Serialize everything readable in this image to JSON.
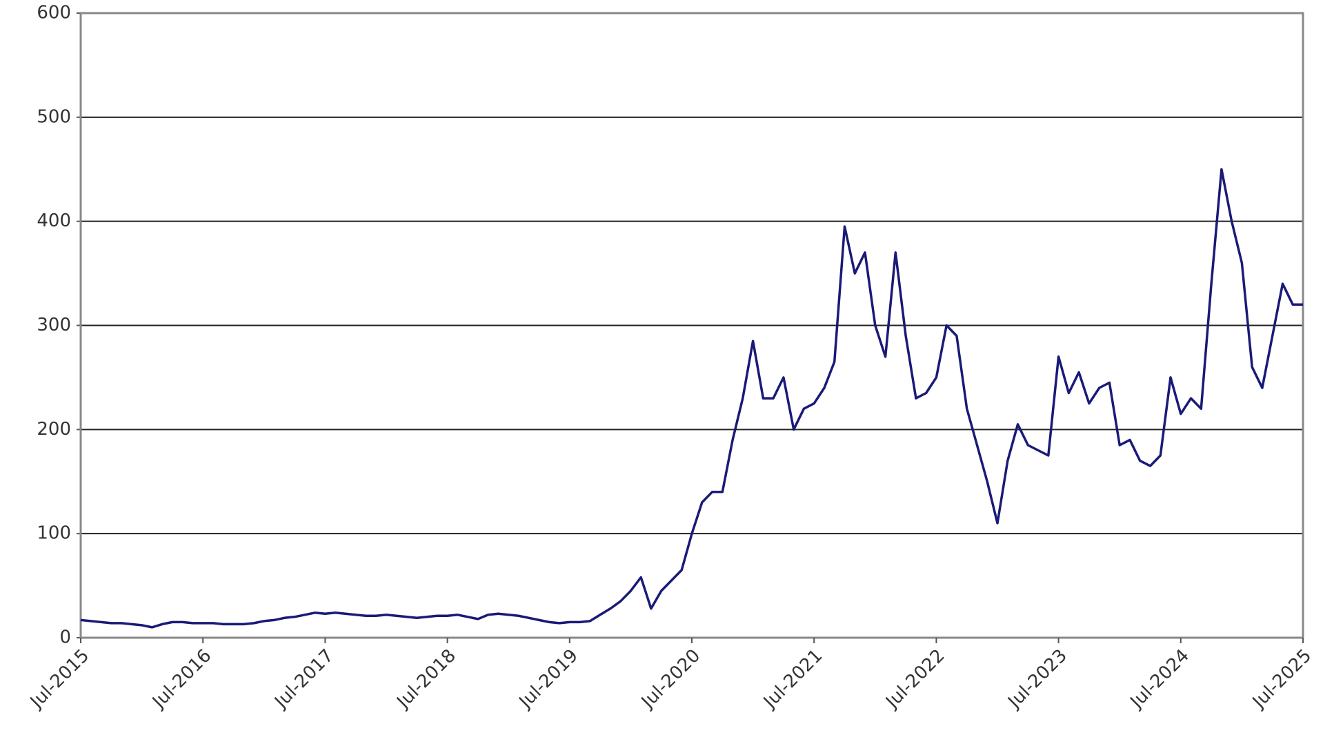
{
  "chart_data": {
    "type": "line",
    "x": [
      "2015-07",
      "2015-08",
      "2015-09",
      "2015-10",
      "2015-11",
      "2015-12",
      "2016-01",
      "2016-02",
      "2016-03",
      "2016-04",
      "2016-05",
      "2016-06",
      "2016-07",
      "2016-08",
      "2016-09",
      "2016-10",
      "2016-11",
      "2016-12",
      "2017-01",
      "2017-02",
      "2017-03",
      "2017-04",
      "2017-05",
      "2017-06",
      "2017-07",
      "2017-08",
      "2017-09",
      "2017-10",
      "2017-11",
      "2017-12",
      "2018-01",
      "2018-02",
      "2018-03",
      "2018-04",
      "2018-05",
      "2018-06",
      "2018-07",
      "2018-08",
      "2018-09",
      "2018-10",
      "2018-11",
      "2018-12",
      "2019-01",
      "2019-02",
      "2019-03",
      "2019-04",
      "2019-05",
      "2019-06",
      "2019-07",
      "2019-08",
      "2019-09",
      "2019-10",
      "2019-11",
      "2019-12",
      "2020-01",
      "2020-02",
      "2020-03",
      "2020-04",
      "2020-05",
      "2020-06",
      "2020-07",
      "2020-08",
      "2020-09",
      "2020-10",
      "2020-11",
      "2020-12",
      "2021-01",
      "2021-02",
      "2021-03",
      "2021-04",
      "2021-05",
      "2021-06",
      "2021-07",
      "2021-08",
      "2021-09",
      "2021-10",
      "2021-11",
      "2021-12",
      "2022-01",
      "2022-02",
      "2022-03",
      "2022-04",
      "2022-05",
      "2022-06",
      "2022-07",
      "2022-08",
      "2022-09",
      "2022-10",
      "2022-11",
      "2022-12",
      "2023-01",
      "2023-02",
      "2023-03",
      "2023-04",
      "2023-05",
      "2023-06",
      "2023-07",
      "2023-08",
      "2023-09",
      "2023-10",
      "2023-11",
      "2023-12",
      "2024-01",
      "2024-02",
      "2024-03",
      "2024-04",
      "2024-05",
      "2024-06",
      "2024-07",
      "2024-08",
      "2024-09",
      "2024-10",
      "2024-11",
      "2024-12",
      "2025-01",
      "2025-02",
      "2025-03",
      "2025-04",
      "2025-05",
      "2025-06",
      "2025-07"
    ],
    "series": [
      {
        "color": "#1a1a78",
        "values": [
          17,
          16,
          15,
          14,
          14,
          13,
          12,
          10,
          13,
          15,
          15,
          14,
          14,
          14,
          13,
          13,
          13,
          14,
          16,
          17,
          19,
          20,
          22,
          24,
          23,
          24,
          23,
          22,
          21,
          21,
          22,
          21,
          20,
          19,
          20,
          21,
          21,
          22,
          20,
          18,
          22,
          23,
          22,
          21,
          19,
          17,
          15,
          14,
          15,
          15,
          16,
          22,
          28,
          35,
          45,
          58,
          28,
          45,
          55,
          65,
          100,
          130,
          140,
          140,
          190,
          230,
          285,
          230,
          230,
          250,
          200,
          220,
          225,
          240,
          265,
          395,
          350,
          370,
          300,
          270,
          370,
          290,
          230,
          235,
          250,
          300,
          290,
          220,
          185,
          150,
          110,
          170,
          205,
          185,
          180,
          175,
          270,
          235,
          255,
          225,
          240,
          245,
          185,
          190,
          170,
          165,
          175,
          250,
          215,
          230,
          220,
          340,
          450,
          400,
          360,
          260,
          240,
          290,
          340,
          320,
          320
        ]
      }
    ],
    "xlim": [
      "2015-07",
      "2025-07"
    ],
    "xticks": [
      {
        "value": "2015-07",
        "label": "Jul-2015"
      },
      {
        "value": "2016-07",
        "label": "Jul-2016"
      },
      {
        "value": "2017-07",
        "label": "Jul-2017"
      },
      {
        "value": "2018-07",
        "label": "Jul-2018"
      },
      {
        "value": "2019-07",
        "label": "Jul-2019"
      },
      {
        "value": "2020-07",
        "label": "Jul-2020"
      },
      {
        "value": "2021-07",
        "label": "Jul-2021"
      },
      {
        "value": "2022-07",
        "label": "Jul-2022"
      },
      {
        "value": "2023-07",
        "label": "Jul-2023"
      },
      {
        "value": "2024-07",
        "label": "Jul-2024"
      },
      {
        "value": "2025-07",
        "label": "Jul-2025"
      }
    ],
    "ylim": [
      0,
      600
    ],
    "yticks": [
      0,
      100,
      200,
      300,
      400,
      500,
      600
    ],
    "grid": true
  }
}
